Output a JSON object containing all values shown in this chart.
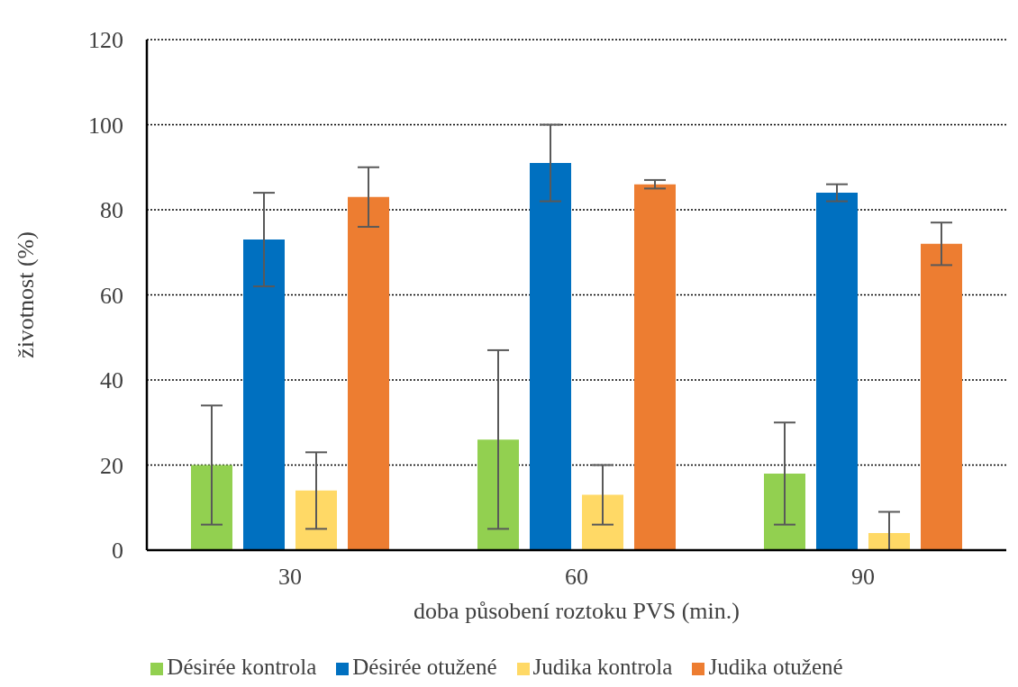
{
  "chart_data": {
    "type": "bar",
    "xlabel": "doba působení roztoku PVS (min.)",
    "ylabel": "životnost (%)",
    "categories": [
      "30",
      "60",
      "90"
    ],
    "series": [
      {
        "name": "Désirée kontrola",
        "color": "#92d050",
        "values": [
          20,
          26,
          18
        ],
        "errors": [
          [
            6,
            34
          ],
          [
            5,
            47
          ],
          [
            6,
            30
          ]
        ]
      },
      {
        "name": "Désirée otužené",
        "color": "#0070c0",
        "values": [
          73,
          91,
          84
        ],
        "errors": [
          [
            62,
            84
          ],
          [
            82,
            100
          ],
          [
            82,
            86
          ]
        ]
      },
      {
        "name": "Judika kontrola",
        "color": "#ffd966",
        "values": [
          14,
          13,
          4
        ],
        "errors": [
          [
            5,
            23
          ],
          [
            6,
            20
          ],
          [
            0,
            9
          ]
        ]
      },
      {
        "name": "Judika otužené",
        "color": "#ed7d31",
        "values": [
          83,
          86,
          72
        ],
        "errors": [
          [
            76,
            90
          ],
          [
            85,
            87
          ],
          [
            67,
            77
          ]
        ]
      }
    ],
    "ylim": [
      0,
      120
    ],
    "yticks": [
      0,
      20,
      40,
      60,
      80,
      100,
      120
    ],
    "grid": "y",
    "legend": "bottom"
  }
}
